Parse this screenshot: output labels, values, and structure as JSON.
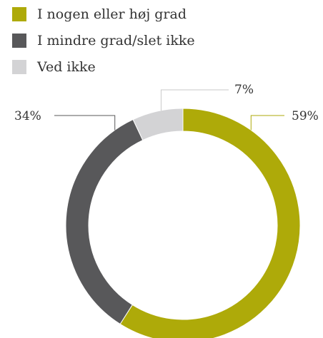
{
  "chart_data": {
    "type": "pie",
    "donut": true,
    "legend_position": "top-left",
    "categories": [
      "I nogen eller høj grad",
      "I mindre grad/slet ikke",
      "Ved ikke"
    ],
    "values": [
      59,
      34,
      7
    ],
    "value_labels": [
      "59%",
      "34%",
      "7%"
    ],
    "colors": [
      "#aeaa09",
      "#58585a",
      "#d3d3d5"
    ]
  }
}
